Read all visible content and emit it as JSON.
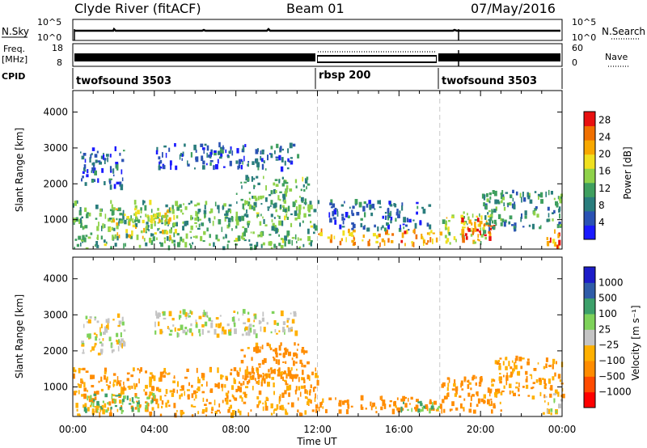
{
  "header": {
    "station": "Clyde River (fitACF)",
    "beam": "Beam 01",
    "date": "07/May/2016"
  },
  "aux_panels": {
    "nsky_label": "N.Sky",
    "nsearch_label": "N.Search",
    "nsky_ticks": [
      "10^5",
      "10^0"
    ],
    "freq_label": "Freq.",
    "freq_unit": "[MHz]",
    "freq_ticks": [
      "18",
      "8"
    ],
    "nave_label": "Nave",
    "nave_ticks": [
      "60",
      "0"
    ],
    "cpid_label": "CPID",
    "cpid_segments": [
      {
        "label": "twofsound 3503",
        "start_hour": 0
      },
      {
        "label": "rbsp 200",
        "start_hour": 12
      },
      {
        "label": "twofsound 3503",
        "start_hour": 18
      }
    ]
  },
  "colors": {
    "power": [
      "#1a1aff",
      "#2a52b4",
      "#2a7d7d",
      "#3f9f5f",
      "#8fd24a",
      "#f0e020",
      "#f8a800",
      "#f07000",
      "#e81010"
    ],
    "velocity": [
      "#ff0000",
      "#ff4b00",
      "#ff8c00",
      "#ffb000",
      "#c4c4c4",
      "#7ed25a",
      "#3ca06a",
      "#2f5ca8",
      "#1c1cc8"
    ],
    "grid_line": "#c8c8c8"
  },
  "chart_data": [
    {
      "type": "heatmap",
      "panel": "power",
      "ylabel": "Slant Range [km]",
      "xlim": [
        "00:00",
        "24:00"
      ],
      "ylim": [
        180,
        4600
      ],
      "y_ticks": [
        1000,
        2000,
        3000,
        4000
      ],
      "colorbar": {
        "label": "Power [dB]",
        "ticks": [
          4,
          8,
          12,
          16,
          20,
          24,
          28
        ],
        "range": [
          0,
          30
        ]
      },
      "echo_regions": [
        {
          "t0": 0.0,
          "t1": 12.0,
          "r0": 200,
          "r1": 1500,
          "value": 12
        },
        {
          "t0": 1.8,
          "t1": 5.0,
          "r0": 500,
          "r1": 1300,
          "value": 18
        },
        {
          "t0": 0.3,
          "t1": 2.5,
          "r0": 1900,
          "r1": 3000,
          "value": 6
        },
        {
          "t0": 4.0,
          "t1": 11.0,
          "r0": 2400,
          "r1": 3100,
          "value": 6
        },
        {
          "t0": 8.0,
          "t1": 11.5,
          "r0": 1500,
          "r1": 2200,
          "value": 12
        },
        {
          "t0": 12.0,
          "t1": 18.0,
          "r0": 300,
          "r1": 700,
          "value": 22
        },
        {
          "t0": 12.5,
          "t1": 17.5,
          "r0": 700,
          "r1": 1500,
          "value": 6
        },
        {
          "t0": 18.0,
          "t1": 20.5,
          "r0": 300,
          "r1": 1200,
          "value": 16
        },
        {
          "t0": 19.0,
          "t1": 20.8,
          "r0": 400,
          "r1": 1000,
          "value": 26
        },
        {
          "t0": 20.0,
          "t1": 24.0,
          "r0": 700,
          "r1": 1800,
          "value": 10
        },
        {
          "t0": 23.0,
          "t1": 24.0,
          "r0": 200,
          "r1": 700,
          "value": 24
        }
      ]
    },
    {
      "type": "heatmap",
      "panel": "velocity",
      "xlabel": "Time UT",
      "ylabel": "Slant Range [km]",
      "xlim": [
        "00:00",
        "24:00"
      ],
      "ylim": [
        180,
        4600
      ],
      "x_ticks": [
        "00:00",
        "04:00",
        "08:00",
        "12:00",
        "16:00",
        "20:00",
        "00:00"
      ],
      "y_ticks": [
        1000,
        2000,
        3000,
        4000
      ],
      "colorbar": {
        "label": "Velocity [m s⁻¹]",
        "ticks": [
          "1000",
          "500",
          "100",
          "25",
          "−25",
          "−100",
          "−500",
          "−1000"
        ]
      },
      "echo_regions": [
        {
          "t0": 0.0,
          "t1": 12.0,
          "r0": 200,
          "r1": 1500,
          "value": -100
        },
        {
          "t0": 0.5,
          "t1": 4.0,
          "r0": 300,
          "r1": 800,
          "value": 100
        },
        {
          "t0": 0.3,
          "t1": 2.5,
          "r0": 1900,
          "r1": 3000,
          "value": 0
        },
        {
          "t0": 4.0,
          "t1": 11.0,
          "r0": 2400,
          "r1": 3100,
          "value": 0
        },
        {
          "t0": 8.0,
          "t1": 11.5,
          "r0": 1200,
          "r1": 2200,
          "value": -150
        },
        {
          "t0": 12.0,
          "t1": 18.0,
          "r0": 300,
          "r1": 700,
          "value": -150
        },
        {
          "t0": 16.0,
          "t1": 18.0,
          "r0": 300,
          "r1": 600,
          "value": 100
        },
        {
          "t0": 18.0,
          "t1": 21.0,
          "r0": 300,
          "r1": 1300,
          "value": -150
        },
        {
          "t0": 20.5,
          "t1": 24.0,
          "r0": 700,
          "r1": 1800,
          "value": -100
        },
        {
          "t0": 23.0,
          "t1": 24.0,
          "r0": 200,
          "r1": 800,
          "value": 0
        }
      ]
    }
  ]
}
